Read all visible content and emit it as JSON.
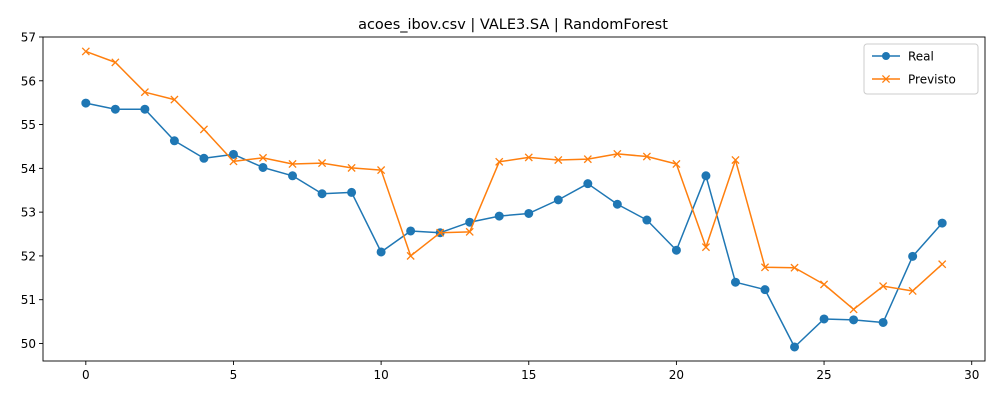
{
  "chart_data": {
    "type": "line",
    "title": "acoes_ibov.csv | VALE3.SA | RandomForest",
    "xlabel": "",
    "ylabel": "",
    "xlim": [
      -1.45,
      30.45
    ],
    "ylim": [
      49.6,
      57.0
    ],
    "xticks": [
      0,
      5,
      10,
      15,
      20,
      25,
      30
    ],
    "yticks": [
      50,
      51,
      52,
      53,
      54,
      55,
      56,
      57
    ],
    "grid": false,
    "legend_position": "top-right",
    "x": [
      0,
      1,
      2,
      3,
      4,
      5,
      6,
      7,
      8,
      9,
      10,
      11,
      12,
      13,
      14,
      15,
      16,
      17,
      18,
      19,
      20,
      21,
      22,
      23,
      24,
      25,
      26,
      27,
      28,
      29
    ],
    "series": [
      {
        "name": "Real",
        "color": "#1f77b4",
        "marker": "circle",
        "values": [
          55.49,
          55.35,
          55.35,
          54.63,
          54.23,
          54.32,
          54.02,
          53.83,
          53.42,
          53.45,
          52.09,
          52.57,
          52.53,
          52.77,
          52.91,
          52.97,
          53.28,
          53.65,
          53.18,
          52.82,
          52.13,
          53.83,
          51.4,
          51.23,
          49.92,
          50.56,
          50.54,
          50.48,
          51.99,
          52.75
        ]
      },
      {
        "name": "Previsto",
        "color": "#ff7f0e",
        "marker": "x",
        "values": [
          56.67,
          56.42,
          55.74,
          55.57,
          54.89,
          54.16,
          54.24,
          54.1,
          54.12,
          54.01,
          53.96,
          52.0,
          52.53,
          52.55,
          54.15,
          54.25,
          54.19,
          54.21,
          54.33,
          54.27,
          54.1,
          52.2,
          54.19,
          51.74,
          51.73,
          51.35,
          50.78,
          51.31,
          51.2,
          51.81
        ]
      }
    ]
  }
}
